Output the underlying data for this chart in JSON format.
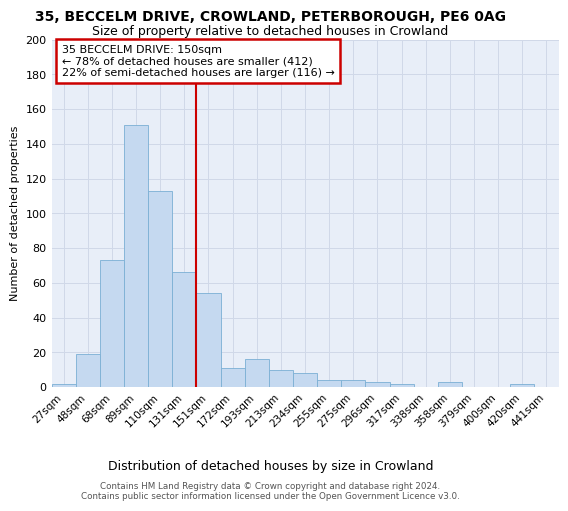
{
  "title1": "35, BECCELM DRIVE, CROWLAND, PETERBOROUGH, PE6 0AG",
  "title2": "Size of property relative to detached houses in Crowland",
  "xlabel": "Distribution of detached houses by size in Crowland",
  "ylabel": "Number of detached properties",
  "footer1": "Contains HM Land Registry data © Crown copyright and database right 2024.",
  "footer2": "Contains public sector information licensed under the Open Government Licence v3.0.",
  "annotation_title": "35 BECCELM DRIVE: 150sqm",
  "annotation_line1": "← 78% of detached houses are smaller (412)",
  "annotation_line2": "22% of semi-detached houses are larger (116) →",
  "bar_categories": [
    "27sqm",
    "48sqm",
    "68sqm",
    "89sqm",
    "110sqm",
    "131sqm",
    "151sqm",
    "172sqm",
    "193sqm",
    "213sqm",
    "234sqm",
    "255sqm",
    "275sqm",
    "296sqm",
    "317sqm",
    "338sqm",
    "358sqm",
    "379sqm",
    "400sqm",
    "420sqm",
    "441sqm"
  ],
  "bar_values": [
    2,
    19,
    73,
    151,
    113,
    66,
    54,
    11,
    16,
    10,
    8,
    4,
    4,
    3,
    2,
    0,
    3,
    0,
    0,
    2,
    0
  ],
  "bar_color": "#c5d9f0",
  "bar_edge_color": "#7bafd4",
  "vline_color": "#cc0000",
  "annotation_box_color": "#cc0000",
  "grid_color": "#d0d8e8",
  "bg_color": "#e8eef8",
  "ylim": [
    0,
    200
  ],
  "yticks": [
    0,
    20,
    40,
    60,
    80,
    100,
    120,
    140,
    160,
    180,
    200
  ]
}
